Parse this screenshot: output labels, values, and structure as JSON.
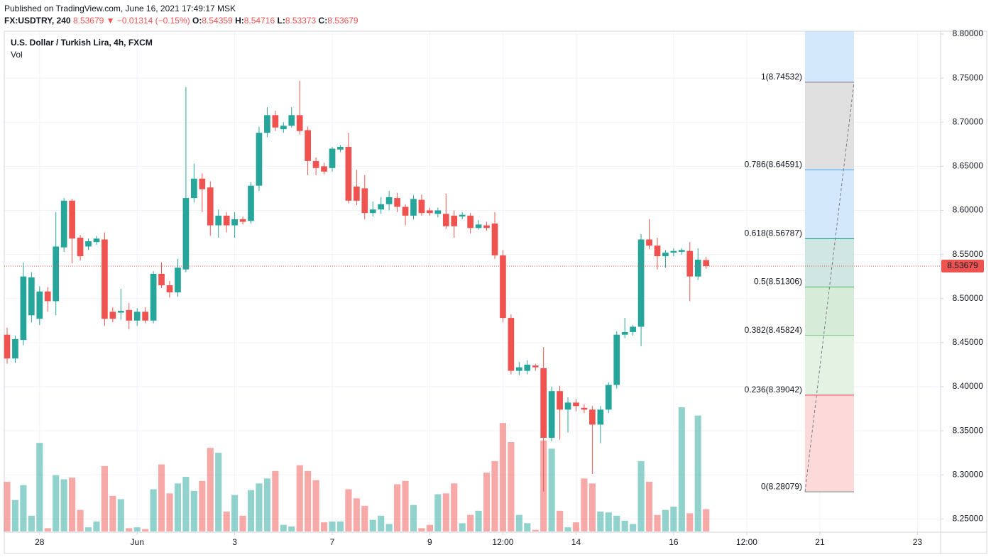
{
  "header": {
    "published": "Published on TradingView.com, June 16, 2021 17:49:17 MSK",
    "symbol": "FX:USDTRY, 240",
    "last": "8.53679",
    "arrow": "▼",
    "change": "−0.01314 (−0.15%)",
    "ohlc": [
      {
        "label": "O:",
        "value": "8.54359"
      },
      {
        "label": "H:",
        "value": "8.54716"
      },
      {
        "label": "L:",
        "value": "8.53373"
      },
      {
        "label": "C:",
        "value": "8.53679"
      }
    ]
  },
  "chart_data": {
    "type": "candlestick",
    "title": "U.S. Dollar / Turkish Lira, 4h, FXCM",
    "up_color": "#26a69a",
    "down_color": "#ef5350",
    "x": [
      null,
      null,
      null,
      null,
      null,
      null,
      null,
      null,
      null,
      null,
      null,
      null,
      null,
      null,
      null,
      null,
      null,
      null,
      null,
      null,
      null,
      null,
      null,
      null,
      null,
      null,
      null,
      null,
      null,
      null,
      null,
      null,
      null,
      null,
      null,
      null,
      null,
      null,
      null,
      null,
      null,
      null,
      null,
      null,
      null,
      null,
      null,
      null,
      null,
      null,
      null,
      null,
      null,
      null,
      null,
      null,
      null,
      null,
      null,
      null,
      null,
      null,
      null,
      null,
      null,
      null,
      null,
      null,
      null,
      null,
      null,
      null,
      null,
      null,
      null,
      null,
      null,
      null,
      null,
      null,
      null,
      null,
      null,
      null,
      null,
      null,
      null
    ],
    "open": [
      8.459,
      8.432,
      8.453,
      8.481,
      8.477,
      8.508,
      8.497,
      8.558,
      8.611,
      8.569,
      8.559,
      8.564,
      8.567,
      8.485,
      8.484,
      8.487,
      8.475,
      8.485,
      8.475,
      8.528,
      8.515,
      8.507,
      8.533,
      8.614,
      8.636,
      8.626,
      8.583,
      8.594,
      8.583,
      8.59,
      8.588,
      8.628,
      8.688,
      8.708,
      8.692,
      8.696,
      8.708,
      8.691,
      8.656,
      8.65,
      8.648,
      8.669,
      8.672,
      8.627,
      8.625,
      8.597,
      8.601,
      8.607,
      8.614,
      8.604,
      8.594,
      8.612,
      8.6,
      8.596,
      8.596,
      8.594,
      8.593,
      8.594,
      8.58,
      8.583,
      8.585,
      8.549,
      8.478,
      8.418,
      8.418,
      8.424,
      8.421,
      8.342,
      8.395,
      8.374,
      8.382,
      8.376,
      8.374,
      8.357,
      8.374,
      8.402,
      8.459,
      8.462,
      8.468,
      8.567,
      8.56,
      8.548,
      8.552,
      8.553,
      8.554,
      8.525,
      8.54359
    ],
    "high": [
      8.467,
      8.458,
      8.541,
      8.53,
      8.514,
      8.513,
      8.598,
      8.614,
      8.613,
      8.572,
      8.568,
      8.571,
      8.575,
      8.49,
      8.511,
      8.495,
      8.489,
      8.49,
      8.531,
      8.541,
      8.52,
      8.545,
      8.74,
      8.653,
      8.642,
      8.633,
      8.601,
      8.598,
      8.598,
      8.593,
      8.632,
      8.695,
      8.717,
      8.713,
      8.7,
      8.717,
      8.747,
      8.695,
      8.66,
      8.654,
      8.672,
      8.674,
      8.688,
      8.646,
      8.64,
      8.61,
      8.615,
      8.622,
      8.62,
      8.607,
      8.617,
      8.618,
      8.603,
      8.603,
      8.619,
      8.6,
      8.598,
      8.597,
      8.589,
      8.587,
      8.598,
      8.555,
      8.482,
      8.428,
      8.43,
      8.426,
      8.445,
      8.4,
      8.401,
      8.388,
      8.386,
      8.38,
      8.378,
      8.378,
      8.405,
      8.463,
      8.478,
      8.47,
      8.573,
      8.59,
      8.569,
      8.555,
      8.557,
      8.557,
      8.564,
      8.557,
      8.54716
    ],
    "low": [
      8.426,
      8.427,
      8.447,
      8.473,
      8.47,
      8.485,
      8.481,
      8.553,
      8.54,
      8.543,
      8.555,
      8.561,
      8.469,
      8.473,
      8.476,
      8.465,
      8.469,
      8.472,
      8.472,
      8.512,
      8.501,
      8.502,
      8.53,
      8.609,
      8.598,
      8.571,
      8.569,
      8.575,
      8.569,
      8.584,
      8.585,
      8.622,
      8.683,
      8.69,
      8.688,
      8.694,
      8.686,
      8.64,
      8.64,
      8.641,
      8.644,
      8.666,
      8.608,
      8.606,
      8.59,
      8.593,
      8.596,
      8.6,
      8.598,
      8.583,
      8.59,
      8.594,
      8.594,
      8.592,
      8.579,
      8.569,
      8.59,
      8.574,
      8.578,
      8.577,
      8.545,
      8.473,
      8.414,
      8.413,
      8.414,
      8.418,
      8.281,
      8.338,
      8.34,
      8.348,
      8.372,
      8.37,
      8.301,
      8.336,
      8.37,
      8.398,
      8.455,
      8.458,
      8.446,
      8.556,
      8.533,
      8.535,
      8.548,
      8.55,
      8.497,
      8.521,
      8.53373
    ],
    "close": [
      8.432,
      8.454,
      8.525,
      8.524,
      8.508,
      8.497,
      8.559,
      8.611,
      8.568,
      8.548,
      8.565,
      8.568,
      8.477,
      8.477,
      8.486,
      8.475,
      8.485,
      8.475,
      8.528,
      8.515,
      8.507,
      8.535,
      8.614,
      8.636,
      8.624,
      8.583,
      8.594,
      8.583,
      8.59,
      8.587,
      8.628,
      8.688,
      8.708,
      8.694,
      8.696,
      8.708,
      8.69,
      8.656,
      8.648,
      8.644,
      8.67,
      8.672,
      8.611,
      8.611,
      8.597,
      8.601,
      8.607,
      8.615,
      8.604,
      8.594,
      8.613,
      8.597,
      8.597,
      8.6,
      8.582,
      8.582,
      8.595,
      8.58,
      8.584,
      8.58,
      8.549,
      8.478,
      8.418,
      8.422,
      8.425,
      8.422,
      8.342,
      8.395,
      8.374,
      8.382,
      8.378,
      8.374,
      8.357,
      8.374,
      8.402,
      8.459,
      8.462,
      8.468,
      8.567,
      8.56,
      8.548,
      8.552,
      8.554,
      8.555,
      8.525,
      8.544,
      8.53679
    ],
    "volume": {
      "name": "Vol",
      "values": [
        60,
        38,
        56,
        19,
        107,
        4,
        68,
        63,
        65,
        26,
        5,
        12,
        79,
        43,
        39,
        4,
        5,
        3,
        51,
        81,
        46,
        58,
        66,
        49,
        61,
        101,
        95,
        24,
        44,
        19,
        50,
        58,
        64,
        73,
        8,
        6,
        80,
        73,
        62,
        11,
        12,
        12,
        51,
        40,
        31,
        14,
        19,
        9,
        57,
        61,
        32,
        4,
        8,
        45,
        46,
        58,
        10,
        20,
        25,
        71,
        85,
        131,
        108,
        20,
        10,
        2,
        110,
        100,
        25,
        5,
        11,
        64,
        58,
        24,
        23,
        19,
        13,
        9,
        85,
        60,
        20,
        26,
        30,
        150,
        22,
        140,
        27
      ]
    },
    "xlim": [
      -0.35,
      114.85
    ],
    "xticks": [
      {
        "value": 4,
        "label": "28"
      },
      {
        "value": 16,
        "label": "Jun"
      },
      {
        "value": 28,
        "label": "3"
      },
      {
        "value": 40,
        "label": "7"
      },
      {
        "value": 52,
        "label": "9"
      },
      {
        "value": 61,
        "label": "12:00"
      },
      {
        "value": 70,
        "label": "14"
      },
      {
        "value": 82,
        "label": "16"
      },
      {
        "value": 91,
        "label": "12:00"
      },
      {
        "value": 100,
        "label": "21"
      },
      {
        "value": 112,
        "label": "23"
      }
    ],
    "ylim": [
      8.235,
      8.8032
    ],
    "yticks": [
      {
        "value": 8.25,
        "label": "8.25000"
      },
      {
        "value": 8.3,
        "label": "8.30000"
      },
      {
        "value": 8.35,
        "label": "8.35000"
      },
      {
        "value": 8.4,
        "label": "8.40000"
      },
      {
        "value": 8.45,
        "label": "8.45000"
      },
      {
        "value": 8.5,
        "label": "8.50000"
      },
      {
        "value": 8.55,
        "label": "8.55000"
      },
      {
        "value": 8.6,
        "label": "8.60000"
      },
      {
        "value": 8.65,
        "label": "8.65000"
      },
      {
        "value": 8.7,
        "label": "8.70000"
      },
      {
        "value": 8.75,
        "label": "8.75000"
      },
      {
        "value": 8.8,
        "label": "8.80000"
      }
    ],
    "grid": true,
    "fib_levels": [
      {
        "label": "1(8.74532)",
        "value": 8.74532,
        "color": "#787b86",
        "fill": "#e0e0e0"
      },
      {
        "label": "0.786(8.64591)",
        "value": 8.64591,
        "color": "#42a5f5",
        "fill": "#d3e8fb"
      },
      {
        "label": "0.618(8.56787)",
        "value": 8.56787,
        "color": "#089981",
        "fill": "#cfe6e3"
      },
      {
        "label": "0.5(8.51306)",
        "value": 8.51306,
        "color": "#4caf50",
        "fill": "#d7ecd8"
      },
      {
        "label": "0.382(8.45824)",
        "value": 8.45824,
        "color": "#81c784",
        "fill": "#e4f2e4"
      },
      {
        "label": "0.236(8.39042)",
        "value": 8.39042,
        "color": "#f23645",
        "fill": "#fcdada"
      },
      {
        "label": "0(8.28079)",
        "value": 8.28079,
        "color": "#787b86"
      }
    ]
  }
}
